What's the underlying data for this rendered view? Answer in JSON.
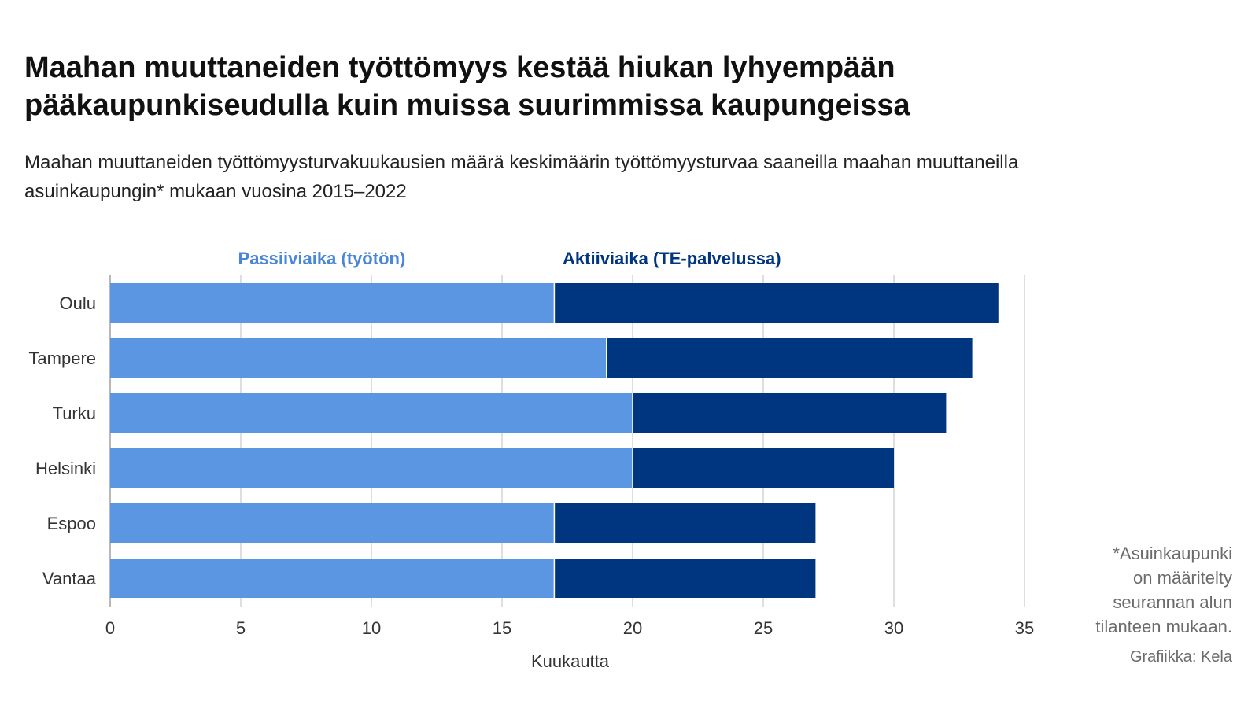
{
  "title": "Maahan muuttaneiden työttömyys kestää hiukan lyhyempään pääkaupunkiseudulla kuin muissa suurimmissa kaupungeissa",
  "subtitle": "Maahan muuttaneiden työttömyysturvakuukausien määrä keskimäärin työttömyysturvaa saaneilla maahan muuttaneilla asuinkaupungin* mukaan vuosina 2015–2022",
  "footnote": "*Asuinkaupunki\non määritelty\nseurannan alun\ntilanteen mukaan.",
  "credit": "Grafiikka: Kela",
  "chart_data": {
    "type": "bar",
    "orientation": "horizontal",
    "stacked": true,
    "categories": [
      "Oulu",
      "Tampere",
      "Turku",
      "Helsinki",
      "Espoo",
      "Vantaa"
    ],
    "series": [
      {
        "name": "Passiiviaika (työtön)",
        "color": "#5b96e3",
        "values": [
          17,
          19,
          20,
          20,
          17,
          17
        ]
      },
      {
        "name": "Aktiiviaika (TE-palvelussa)",
        "color": "#00357f",
        "values": [
          17,
          14,
          12,
          10,
          10,
          10
        ]
      }
    ],
    "xlabel": "Kuukautta",
    "ylabel": "",
    "xlim": [
      0,
      35
    ],
    "xticks": [
      "0",
      "5",
      "10",
      "15",
      "20",
      "25",
      "30",
      "35"
    ],
    "grid": true,
    "legend_position": "top"
  }
}
